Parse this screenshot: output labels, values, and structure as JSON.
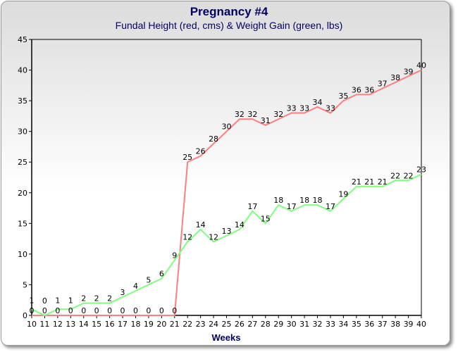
{
  "chart_data": {
    "type": "line",
    "title": "Pregnancy #4",
    "subtitle": "Fundal Height (red, cms) & Weight Gain (green, lbs)",
    "xlabel": "Weeks",
    "ylabel": "",
    "x": [
      10,
      11,
      12,
      13,
      14,
      15,
      16,
      17,
      18,
      19,
      20,
      21,
      22,
      23,
      24,
      25,
      26,
      27,
      28,
      29,
      30,
      31,
      32,
      33,
      34,
      35,
      36,
      37,
      38,
      39,
      40
    ],
    "xlim": [
      10,
      40
    ],
    "ylim": [
      0,
      45
    ],
    "yticks": [
      0,
      5,
      10,
      15,
      20,
      25,
      30,
      35,
      40,
      45
    ],
    "grid": false,
    "series": [
      {
        "color": "#ff7f7f",
        "values": [
          0,
          0,
          0,
          0,
          0,
          0,
          0,
          0,
          0,
          0,
          0,
          0,
          25,
          26,
          28,
          30,
          32,
          32,
          31,
          32,
          33,
          33,
          34,
          33,
          35,
          36,
          36,
          37,
          38,
          39,
          40
        ]
      },
      {
        "color": "#7fff7f",
        "values": [
          1,
          0,
          1,
          1,
          2,
          2,
          2,
          3,
          4,
          5,
          6,
          9,
          12,
          14,
          12,
          13,
          14,
          17,
          15,
          18,
          17,
          18,
          18,
          17,
          19,
          21,
          21,
          21,
          22,
          22,
          23
        ]
      }
    ]
  }
}
